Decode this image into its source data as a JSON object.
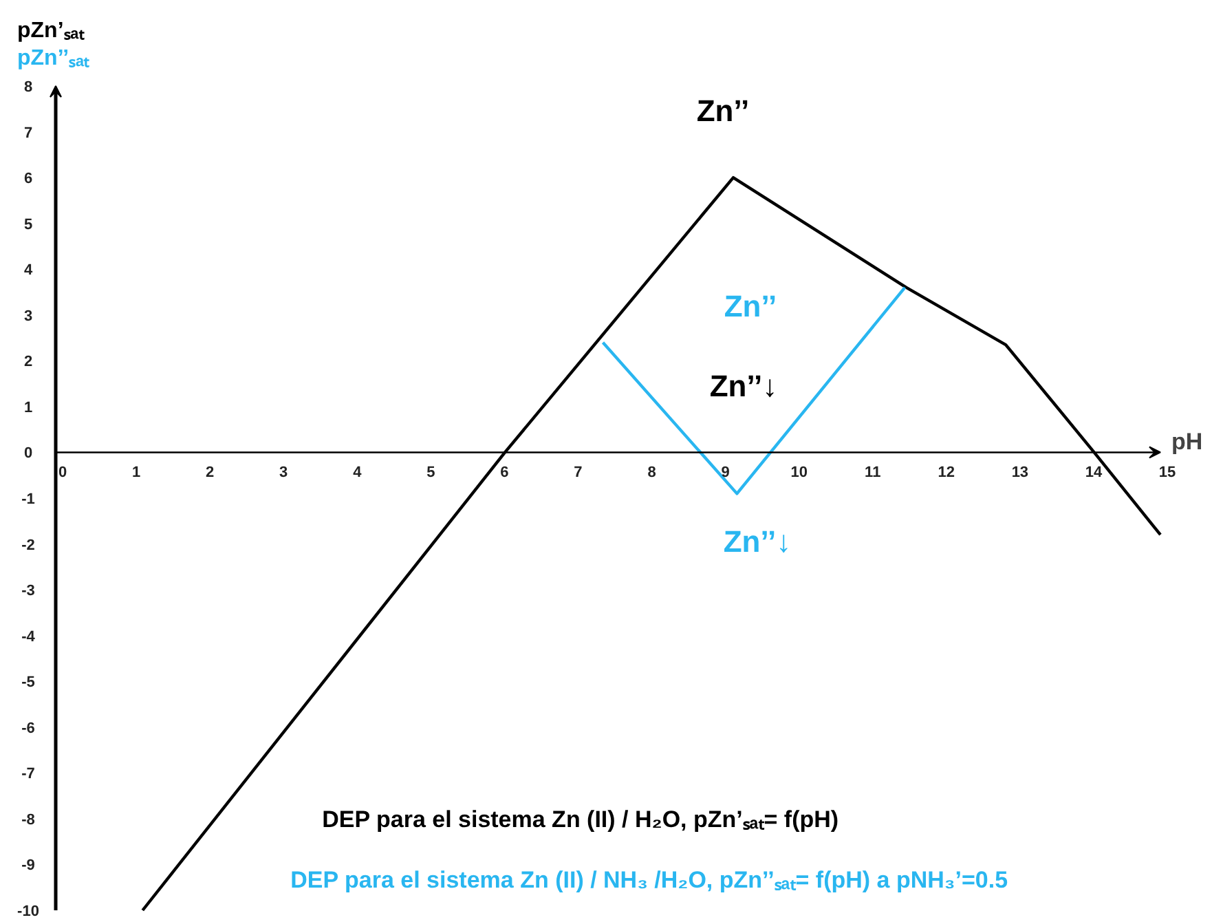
{
  "chart_data": {
    "type": "line",
    "xlabel": "pH",
    "ylabel": "pZn’ₛₐₜ\npZn’’ₛₐₜ",
    "xlim": [
      0,
      15
    ],
    "ylim": [
      -10,
      8
    ],
    "xticks": [
      0,
      1,
      2,
      3,
      4,
      5,
      6,
      7,
      8,
      9,
      10,
      11,
      12,
      13,
      14,
      15
    ],
    "yticks": [
      -10,
      -9,
      -8,
      -7,
      -6,
      -5,
      -4,
      -3,
      -2,
      -1,
      0,
      1,
      2,
      3,
      4,
      5,
      6,
      7,
      8
    ],
    "grid": false,
    "marker": "none",
    "line_style": "solid",
    "series": [
      {
        "color": "#000000",
        "x": [
          1.18,
          6.1,
          9.2,
          11.55,
          12.9,
          14.1,
          15.0
        ],
        "values": [
          -10,
          0,
          6.0,
          3.6,
          2.35,
          0,
          -1.8
        ]
      },
      {
        "color": "#29b6f0",
        "x": [
          7.43,
          9.25,
          11.53
        ],
        "values": [
          2.4,
          -0.9,
          3.6
        ]
      }
    ],
    "annotations": [
      "Zn’’",
      "Zn’’",
      "Zn’’↓",
      "Zn’’↓",
      "DEP para el sistema Zn (II) / H₂O, pZn’ₛₐₜ= f(pH)",
      "DEP para el sistema Zn (II) / NH₃ /H₂O, pZn’’ₛₐₜ= f(pH) a pNH₃’=0.5"
    ]
  }
}
